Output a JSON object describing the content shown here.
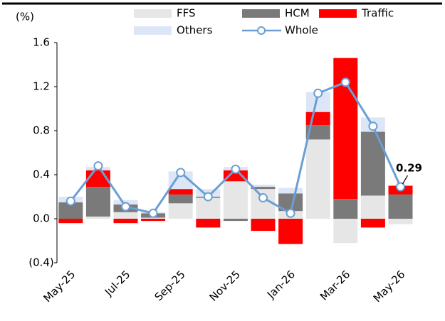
{
  "chart_data": {
    "type": "bar",
    "stacked": true,
    "y_label": "(%)",
    "categories": [
      "May-25",
      null,
      "Jul-25",
      null,
      "Sep-25",
      null,
      "Nov-25",
      null,
      "Jan-26",
      null,
      "Mar-26",
      null,
      "May-26"
    ],
    "series": [
      {
        "name": "FFS",
        "color": "#e6e6e6",
        "values": [
          0,
          0.02,
          0.06,
          0.01,
          0.14,
          0.19,
          0.34,
          0.27,
          0.07,
          0.72,
          -0.22,
          0.21,
          -0.05
        ]
      },
      {
        "name": "HCM",
        "color": "#7a7a7a",
        "values": [
          0.15,
          0.27,
          0.07,
          0.04,
          0.08,
          0.01,
          -0.02,
          0.02,
          0.16,
          0.13,
          0.18,
          0.58,
          0.22
        ]
      },
      {
        "name": "Traffic",
        "color": "#ff0000",
        "values": [
          -0.04,
          0.15,
          -0.04,
          -0.02,
          0.05,
          -0.08,
          0.1,
          -0.11,
          -0.23,
          0.12,
          1.28,
          -0.08,
          0.08
        ]
      },
      {
        "name": "Others",
        "color": "#dde6f7",
        "values": [
          0.05,
          0.03,
          0.04,
          0.01,
          0.16,
          0.07,
          0.03,
          0.02,
          0.05,
          0.18,
          0,
          0.13,
          0
        ]
      },
      {
        "name": "Whole",
        "color": "#6a9fd4",
        "type": "line",
        "values": [
          0.16,
          0.48,
          0.11,
          0.05,
          0.42,
          0.2,
          0.45,
          0.19,
          0.05,
          1.14,
          1.24,
          0.84,
          0.29
        ],
        "value_labels": [
          null,
          null,
          null,
          null,
          null,
          null,
          null,
          null,
          null,
          null,
          null,
          null,
          "0.29"
        ]
      }
    ],
    "ylim": [
      -0.4,
      1.6
    ],
    "yticks": [
      {
        "value": -0.4,
        "label": "(0.4)"
      },
      {
        "value": 0,
        "label": "0.0"
      },
      0.4,
      0.8,
      1.2,
      1.6
    ],
    "legend": "top"
  }
}
